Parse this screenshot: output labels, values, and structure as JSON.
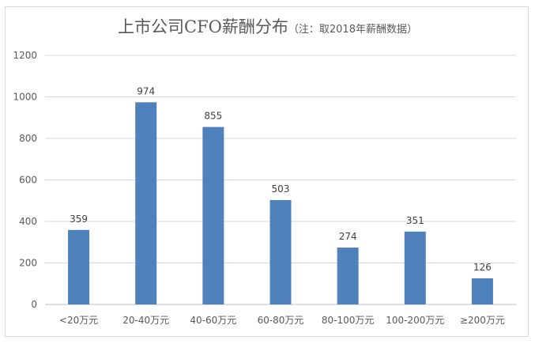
{
  "chart_data": {
    "type": "bar",
    "title": "上市公司CFO薪酬分布",
    "subtitle": "（注：取2018年薪酬数据）",
    "categories": [
      "<20万元",
      "20-40万元",
      "40-60万元",
      "60-80万元",
      "80-100万元",
      "100-200万元",
      "≥200万元"
    ],
    "values": [
      359,
      974,
      855,
      503,
      274,
      351,
      126
    ],
    "yticks": [
      "0",
      "200",
      "400",
      "600",
      "800",
      "1000",
      "1200"
    ],
    "ylim": [
      0,
      1200
    ],
    "xlabel": "",
    "ylabel": "",
    "grid": true,
    "legend": "none",
    "bar_color": "#4f81bd"
  }
}
